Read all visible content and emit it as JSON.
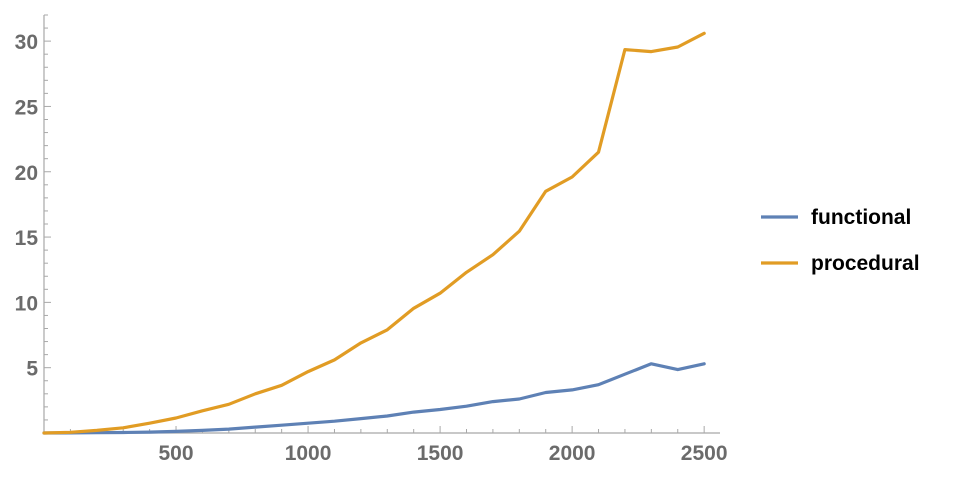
{
  "chart_data": {
    "type": "line",
    "title": "",
    "xlabel": "",
    "ylabel": "",
    "xlim": [
      0,
      2560
    ],
    "ylim": [
      0,
      32
    ],
    "x_ticks": [
      500,
      1000,
      1500,
      2000,
      2500
    ],
    "y_ticks": [
      5,
      10,
      15,
      20,
      25,
      30
    ],
    "grid": false,
    "legend_position": "right",
    "series": [
      {
        "name": "functional",
        "color": "#5e81b5",
        "x": [
          0,
          100,
          200,
          300,
          400,
          500,
          600,
          700,
          800,
          900,
          1000,
          1100,
          1200,
          1300,
          1400,
          1500,
          1600,
          1700,
          1800,
          1900,
          2000,
          2100,
          2200,
          2300,
          2400,
          2500
        ],
        "values": [
          0.0,
          0.01,
          0.02,
          0.04,
          0.07,
          0.12,
          0.2,
          0.3,
          0.45,
          0.6,
          0.75,
          0.9,
          1.1,
          1.3,
          1.6,
          1.8,
          2.05,
          2.4,
          2.6,
          3.1,
          3.3,
          3.7,
          4.5,
          5.3,
          4.85,
          5.3
        ]
      },
      {
        "name": "procedural",
        "color": "#e19c24",
        "x": [
          0,
          100,
          200,
          300,
          400,
          500,
          600,
          700,
          800,
          900,
          1000,
          1100,
          1200,
          1300,
          1400,
          1500,
          1600,
          1700,
          1800,
          1900,
          2000,
          2100,
          2200,
          2300,
          2400,
          2500
        ],
        "values": [
          0.0,
          0.05,
          0.2,
          0.4,
          0.75,
          1.15,
          1.7,
          2.2,
          3.0,
          3.65,
          4.7,
          5.6,
          6.9,
          7.9,
          9.55,
          10.7,
          12.3,
          13.65,
          15.45,
          18.5,
          19.6,
          21.5,
          29.35,
          29.2,
          29.55,
          30.6
        ]
      }
    ]
  }
}
